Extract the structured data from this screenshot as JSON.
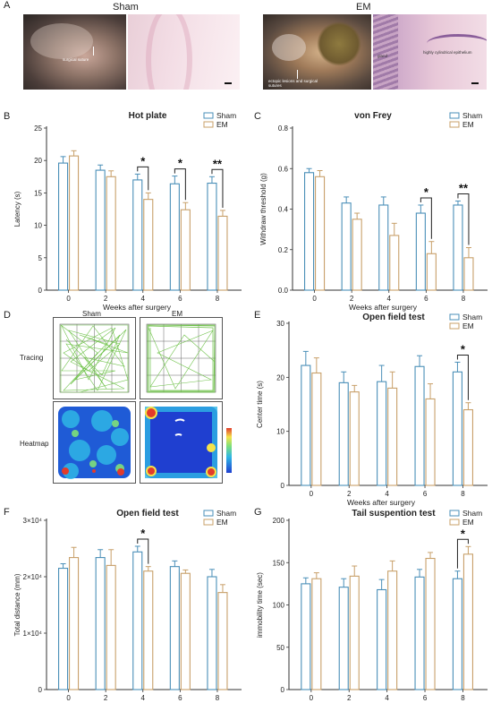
{
  "figure": {
    "panels": [
      {
        "letter": "A"
      },
      {
        "letter": "B"
      },
      {
        "letter": "C"
      },
      {
        "letter": "D"
      },
      {
        "letter": "E"
      },
      {
        "letter": "F"
      },
      {
        "letter": "G"
      }
    ],
    "panel_a": {
      "sham_label": "Sham",
      "em_label": "EM",
      "annotations": {
        "surgical_suture": "surgical suture",
        "ectopic": "ectopic lesions and surgical sutures",
        "gland": "gland",
        "epithelium": "highly cylindrical epithelium"
      }
    },
    "panel_d": {
      "sham": "Sham",
      "em": "EM",
      "tracing": "Tracing",
      "heatmap": "Heatmap"
    },
    "colors": {
      "sham": "#4a8fb8",
      "em": "#c8a06a",
      "axis": "#333333",
      "text": "#222222"
    }
  },
  "chart_data": [
    {
      "id": "B",
      "type": "bar",
      "title": "Hot plate",
      "xlabel": "Weeks after surgery",
      "ylabel": "Latency (s)",
      "categories": [
        "0",
        "2",
        "4",
        "6",
        "8"
      ],
      "ylim": [
        0,
        25
      ],
      "yticks": [
        "0",
        "5",
        "10",
        "15",
        "20",
        "25"
      ],
      "series": [
        {
          "name": "Sham",
          "values": [
            19.6,
            18.5,
            17.0,
            16.4,
            16.5
          ],
          "errors": [
            1.0,
            0.8,
            0.9,
            1.2,
            1.0
          ]
        },
        {
          "name": "EM",
          "values": [
            20.7,
            17.5,
            14.0,
            12.4,
            11.4
          ],
          "errors": [
            0.8,
            0.9,
            1.0,
            1.1,
            0.9
          ]
        }
      ],
      "significance": [
        {
          "category": "4",
          "label": "*"
        },
        {
          "category": "6",
          "label": "*"
        },
        {
          "category": "8",
          "label": "**"
        }
      ],
      "legend": "top-right"
    },
    {
      "id": "C",
      "type": "bar",
      "title": "von Frey",
      "xlabel": "Weeks after surgery",
      "ylabel": "Withdraw threshold (g)",
      "categories": [
        "0",
        "2",
        "4",
        "6",
        "8"
      ],
      "ylim": [
        0,
        0.8
      ],
      "yticks": [
        "0.0",
        "0.2",
        "0.4",
        "0.6",
        "0.8"
      ],
      "series": [
        {
          "name": "Sham",
          "values": [
            0.58,
            0.43,
            0.42,
            0.38,
            0.42
          ],
          "errors": [
            0.02,
            0.03,
            0.04,
            0.04,
            0.02
          ]
        },
        {
          "name": "EM",
          "values": [
            0.56,
            0.35,
            0.27,
            0.18,
            0.16
          ],
          "errors": [
            0.03,
            0.03,
            0.06,
            0.06,
            0.05
          ]
        }
      ],
      "significance": [
        {
          "category": "6",
          "label": "*"
        },
        {
          "category": "8",
          "label": "**"
        }
      ],
      "legend": "top-right"
    },
    {
      "id": "E",
      "type": "bar",
      "title": "Open field test",
      "xlabel": "Weeks after surgery",
      "ylabel": "Center time (s)",
      "categories": [
        "0",
        "2",
        "4",
        "6",
        "8"
      ],
      "ylim": [
        0,
        30
      ],
      "yticks": [
        "0",
        "10",
        "20",
        "30"
      ],
      "series": [
        {
          "name": "Sham",
          "values": [
            22.2,
            19.0,
            19.2,
            22.0,
            21.0
          ],
          "errors": [
            2.6,
            2.0,
            3.0,
            2.0,
            1.8
          ]
        },
        {
          "name": "EM",
          "values": [
            20.8,
            17.3,
            18.0,
            16.0,
            14.0
          ],
          "errors": [
            2.8,
            1.2,
            3.0,
            2.8,
            1.3
          ]
        }
      ],
      "significance": [
        {
          "category": "8",
          "label": "*"
        }
      ],
      "legend": "top-right"
    },
    {
      "id": "F",
      "type": "bar",
      "title": "Open field test",
      "xlabel": "Weeks after surgery",
      "ylabel": "Total distance (mm)",
      "categories": [
        "0",
        "2",
        "4",
        "6",
        "8"
      ],
      "ylim": [
        0,
        30000
      ],
      "yticks": [
        "0",
        "1×10⁴",
        "2×10⁴",
        "3×10⁴"
      ],
      "series": [
        {
          "name": "Sham",
          "values": [
            21500,
            23400,
            24400,
            21800,
            20000
          ],
          "errors": [
            800,
            1400,
            1000,
            1000,
            1300
          ]
        },
        {
          "name": "EM",
          "values": [
            23400,
            22000,
            21000,
            20600,
            17200
          ],
          "errors": [
            1800,
            2800,
            800,
            600,
            1400
          ]
        }
      ],
      "significance": [
        {
          "category": "4",
          "label": "*"
        }
      ],
      "legend": "top-right"
    },
    {
      "id": "G",
      "type": "bar",
      "title": "Tail suspention test",
      "xlabel": "Weeks after surgery",
      "ylabel": "immobility time (sec)",
      "categories": [
        "0",
        "2",
        "4",
        "6",
        "8"
      ],
      "ylim": [
        0,
        200
      ],
      "yticks": [
        "0",
        "50",
        "100",
        "150",
        "200"
      ],
      "series": [
        {
          "name": "Sham",
          "values": [
            125,
            121,
            118,
            133,
            131
          ],
          "errors": [
            7,
            10,
            12,
            9,
            9
          ]
        },
        {
          "name": "EM",
          "values": [
            131,
            134,
            140,
            155,
            160
          ],
          "errors": [
            7,
            12,
            12,
            7,
            9
          ]
        }
      ],
      "significance": [
        {
          "category": "8",
          "label": "*"
        }
      ],
      "legend": "top-right"
    }
  ]
}
